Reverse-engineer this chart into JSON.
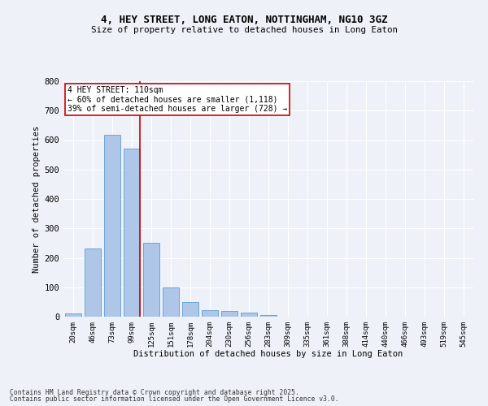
{
  "title1": "4, HEY STREET, LONG EATON, NOTTINGHAM, NG10 3GZ",
  "title2": "Size of property relative to detached houses in Long Eaton",
  "xlabel": "Distribution of detached houses by size in Long Eaton",
  "ylabel": "Number of detached properties",
  "categories": [
    "20sqm",
    "46sqm",
    "73sqm",
    "99sqm",
    "125sqm",
    "151sqm",
    "178sqm",
    "204sqm",
    "230sqm",
    "256sqm",
    "283sqm",
    "309sqm",
    "335sqm",
    "361sqm",
    "388sqm",
    "414sqm",
    "440sqm",
    "466sqm",
    "493sqm",
    "519sqm",
    "545sqm"
  ],
  "values": [
    10,
    232,
    618,
    570,
    250,
    100,
    50,
    22,
    20,
    15,
    5,
    0,
    0,
    0,
    0,
    0,
    0,
    0,
    0,
    0,
    0
  ],
  "bar_color": "#aec6e8",
  "bar_edge_color": "#5a9fd4",
  "property_bin_index": 3,
  "annotation_text": "4 HEY STREET: 110sqm\n← 60% of detached houses are smaller (1,118)\n39% of semi-detached houses are larger (728) →",
  "vline_color": "#cc0000",
  "background_color": "#eef2f8",
  "grid_color": "#ffffff",
  "ylim": [
    0,
    800
  ],
  "yticks": [
    0,
    100,
    200,
    300,
    400,
    500,
    600,
    700,
    800
  ],
  "footnote1": "Contains HM Land Registry data © Crown copyright and database right 2025.",
  "footnote2": "Contains public sector information licensed under the Open Government Licence v3.0."
}
